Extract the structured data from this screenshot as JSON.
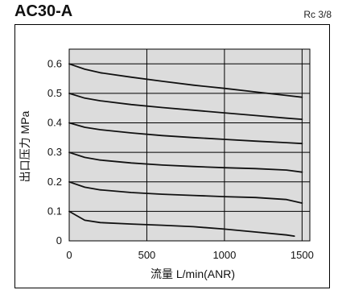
{
  "header": {
    "model": "AC30-A",
    "port_size": "Rc 3/8"
  },
  "colors": {
    "plot_bg": "#dcdcdc",
    "grid": "#000000",
    "line": "#111111"
  },
  "chart_data": {
    "type": "line",
    "title": "",
    "xlabel": "流量 L/min(ANR)",
    "ylabel": "出口压力 MPa",
    "xlim": [
      0,
      1550
    ],
    "ylim": [
      0,
      0.65
    ],
    "xticks": [
      0,
      500,
      1000,
      1500
    ],
    "yticks": [
      0,
      0.1,
      0.2,
      0.3,
      0.4,
      0.5,
      0.6
    ],
    "xtick_labels": [
      "0",
      "500",
      "1000",
      "1500"
    ],
    "ytick_labels": [
      "0",
      "0.1",
      "0.2",
      "0.3",
      "0.4",
      "0.5",
      "0.6"
    ],
    "grid": true,
    "series": [
      {
        "x": [
          0,
          100,
          200,
          400,
          600,
          800,
          1000,
          1200,
          1400,
          1500
        ],
        "y": [
          0.6,
          0.582,
          0.57,
          0.555,
          0.541,
          0.528,
          0.517,
          0.505,
          0.493,
          0.487
        ]
      },
      {
        "x": [
          0,
          100,
          200,
          400,
          600,
          800,
          1000,
          1200,
          1400,
          1500
        ],
        "y": [
          0.5,
          0.484,
          0.475,
          0.462,
          0.452,
          0.443,
          0.434,
          0.425,
          0.416,
          0.412
        ]
      },
      {
        "x": [
          0,
          100,
          200,
          400,
          600,
          800,
          1000,
          1200,
          1400,
          1500
        ],
        "y": [
          0.4,
          0.385,
          0.377,
          0.366,
          0.357,
          0.35,
          0.344,
          0.338,
          0.333,
          0.33
        ]
      },
      {
        "x": [
          0,
          100,
          200,
          400,
          600,
          800,
          1000,
          1200,
          1400,
          1500
        ],
        "y": [
          0.3,
          0.283,
          0.274,
          0.264,
          0.257,
          0.252,
          0.248,
          0.245,
          0.24,
          0.233
        ]
      },
      {
        "x": [
          0,
          100,
          200,
          400,
          600,
          800,
          1000,
          1200,
          1400,
          1500
        ],
        "y": [
          0.2,
          0.182,
          0.173,
          0.164,
          0.158,
          0.154,
          0.15,
          0.147,
          0.14,
          0.128
        ]
      },
      {
        "x": [
          0,
          50,
          100,
          200,
          400,
          600,
          800,
          1000,
          1200,
          1400,
          1450
        ],
        "y": [
          0.1,
          0.085,
          0.07,
          0.062,
          0.057,
          0.053,
          0.048,
          0.04,
          0.03,
          0.02,
          0.016
        ]
      }
    ]
  }
}
